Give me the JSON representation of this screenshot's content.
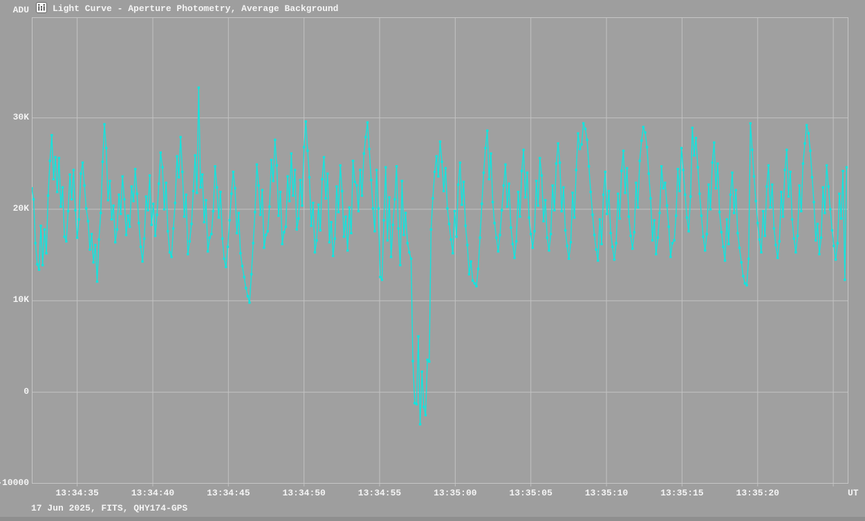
{
  "header": {
    "unit_label": "ADU",
    "title": "Light Curve - Aperture Photometry, Average Background",
    "icon": "light-curve-chart-icon"
  },
  "axes": {
    "x_unit_label": "UT"
  },
  "footer": {
    "info": "17 Jun 2025, FITS, QHY174-GPS"
  },
  "colors": {
    "background": "#9e9e9e",
    "plot_bg": "#a0a0a0",
    "grid": "#c2c2c2",
    "border": "#c6c6c6",
    "text": "#f4f4f4",
    "curve": "#12e4de",
    "bottom_strip": "#8f8f8f"
  },
  "chart_data": {
    "type": "line",
    "title": "Light Curve - Aperture Photometry, Average Background",
    "ylabel": "ADU",
    "xlabel": "UT",
    "grid": true,
    "legend": false,
    "x_axis": {
      "start_time": "13:34:32",
      "end_time": "13:35:26",
      "dt_seconds": 0.12,
      "ticks": [
        {
          "t": 3,
          "label": "13:34:35"
        },
        {
          "t": 8,
          "label": "13:34:40"
        },
        {
          "t": 13,
          "label": "13:34:45"
        },
        {
          "t": 18,
          "label": "13:34:50"
        },
        {
          "t": 23,
          "label": "13:34:55"
        },
        {
          "t": 28,
          "label": "13:35:00"
        },
        {
          "t": 33,
          "label": "13:35:05"
        },
        {
          "t": 38,
          "label": "13:35:10"
        },
        {
          "t": 43,
          "label": "13:35:15"
        },
        {
          "t": 48,
          "label": "13:35:20"
        },
        {
          "t": 53,
          "label": ""
        }
      ]
    },
    "y_axis": {
      "lim": [
        -10000,
        41000
      ],
      "ticks": [
        {
          "v": 30000,
          "label": "30K"
        },
        {
          "v": 20000,
          "label": "20K"
        },
        {
          "v": 10000,
          "label": "10K"
        },
        {
          "v": 0,
          "label": "0"
        },
        {
          "v": -10000,
          "label": "-10000"
        }
      ]
    },
    "series": [
      {
        "name": "aperture-photometry-signal",
        "marker": "square",
        "values": [
          22300,
          21100,
          16300,
          14000,
          13400,
          18200,
          13900,
          17800,
          15200,
          21500,
          25300,
          28100,
          23300,
          25700,
          21900,
          25600,
          20300,
          22400,
          17000,
          16500,
          19800,
          23800,
          21100,
          24300,
          19900,
          16900,
          18900,
          23900,
          25100,
          22600,
          20100,
          18700,
          15600,
          17300,
          14200,
          16100,
          12100,
          16700,
          19600,
          25200,
          29300,
          26700,
          21000,
          23100,
          18900,
          20400,
          16400,
          17800,
          21600,
          19500,
          23600,
          21100,
          17200,
          19300,
          18100,
          22500,
          20900,
          24400,
          21700,
          18500,
          15900,
          14300,
          16800,
          21400,
          19900,
          23700,
          18300,
          20600,
          17100,
          19400,
          22800,
          26200,
          24600,
          20000,
          22900,
          17600,
          15300,
          14800,
          17900,
          20700,
          25800,
          23500,
          27900,
          24100,
          19200,
          21600,
          15100,
          16500,
          18400,
          22000,
          25900,
          21800,
          33300,
          22400,
          23800,
          18600,
          21000,
          15400,
          16900,
          17300,
          19800,
          24700,
          22400,
          19100,
          21900,
          16800,
          14600,
          13700,
          15900,
          18800,
          21700,
          24100,
          22300,
          17400,
          19600,
          15200,
          13800,
          12600,
          11400,
          10500,
          9800,
          12900,
          16300,
          19700,
          24900,
          22600,
          19400,
          22100,
          15800,
          17200,
          17600,
          20300,
          25400,
          23100,
          27600,
          24800,
          19300,
          21900,
          16200,
          17500,
          18100,
          23600,
          20900,
          26100,
          21500,
          24300,
          17800,
          19000,
          23200,
          20400,
          26800,
          29600,
          26400,
          23500,
          18200,
          20700,
          15300,
          16600,
          20500,
          17700,
          23300,
          25700,
          21200,
          23900,
          16400,
          18600,
          14900,
          16800,
          22500,
          19700,
          24800,
          22000,
          17000,
          19200,
          15500,
          20200,
          17400,
          25300,
          23000,
          22600,
          19800,
          24300,
          21500,
          26100,
          27900,
          29500,
          26600,
          23200,
          20100,
          17600,
          24300,
          20100,
          12600,
          12300,
          18800,
          24600,
          16600,
          21300,
          14800,
          18300,
          21100,
          24700,
          17900,
          13900,
          23100,
          17200,
          19600,
          16300,
          15300,
          14600,
          3400,
          -1200,
          -1300,
          6100,
          -3500,
          2250,
          -1600,
          -2500,
          3550,
          3350,
          17800,
          21200,
          24100,
          25800,
          23600,
          27400,
          25200,
          22000,
          24500,
          20100,
          18400,
          16700,
          15200,
          19800,
          17000,
          22700,
          25100,
          20500,
          23000,
          18200,
          16100,
          12900,
          14300,
          12200,
          11900,
          11600,
          13500,
          16900,
          20600,
          24000,
          26700,
          28600,
          23300,
          26100,
          20800,
          18500,
          16900,
          15400,
          17200,
          19900,
          22600,
          24900,
          20300,
          22800,
          18000,
          16200,
          14700,
          16500,
          21900,
          19200,
          24200,
          26500,
          21300,
          24000,
          19100,
          17300,
          15800,
          17600,
          23100,
          20400,
          25600,
          23700,
          18700,
          21000,
          16900,
          15500,
          17300,
          22600,
          19900,
          25000,
          27200,
          25100,
          19800,
          22400,
          17700,
          16000,
          14600,
          16400,
          21800,
          19100,
          24300,
          28300,
          26600,
          27100,
          29400,
          28800,
          27600,
          24700,
          21900,
          19400,
          17200,
          15600,
          14400,
          18900,
          16200,
          21600,
          24100,
          19500,
          22000,
          17400,
          15900,
          14500,
          16300,
          21700,
          19000,
          24200,
          26400,
          21800,
          24500,
          19200,
          17100,
          15700,
          17500,
          22900,
          20200,
          25300,
          27500,
          29000,
          28400,
          26800,
          23900,
          21200,
          16600,
          18800,
          15100,
          16900,
          19600,
          24700,
          22300,
          22900,
          20400,
          18100,
          14800,
          16300,
          16600,
          19300,
          24400,
          22000,
          26700,
          24300,
          21600,
          19100,
          17600,
          21400,
          28900,
          25900,
          27800,
          24600,
          21700,
          19300,
          17000,
          15500,
          17300,
          22700,
          20000,
          25100,
          27300,
          22300,
          25000,
          19700,
          17500,
          15900,
          14400,
          18900,
          16200,
          21600,
          24000,
          19600,
          22100,
          17400,
          15800,
          14200,
          12700,
          11900,
          11700,
          14600,
          29400,
          26500,
          23600,
          20900,
          18500,
          16700,
          15300,
          19800,
          17100,
          22500,
          24800,
          20200,
          22700,
          17900,
          16100,
          14700,
          16500,
          21900,
          19200,
          24300,
          26500,
          21400,
          24100,
          18900,
          16800,
          15300,
          17100,
          22600,
          19800,
          25000,
          27200,
          29200,
          28300,
          26400,
          23500,
          20800,
          16600,
          18400,
          15100,
          16900,
          22400,
          19600,
          24800,
          22500,
          20000,
          17700,
          16000,
          14500,
          16300,
          21700,
          19000,
          24200,
          12300,
          24600
        ]
      }
    ]
  }
}
